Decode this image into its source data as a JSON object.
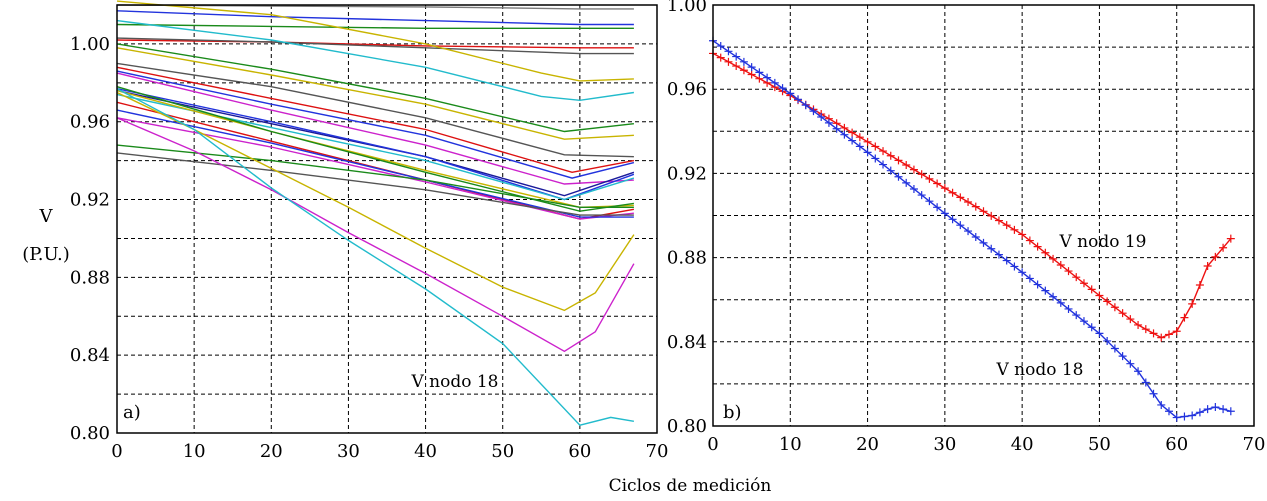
{
  "figure": {
    "xlabel": "Ciclos de medición",
    "ylabel_line1": "V",
    "ylabel_line2": "(P.U.)"
  },
  "chart_data": [
    {
      "type": "line",
      "panel_label": "a)",
      "annotation": "V nodo 18",
      "xlim": [
        0,
        70
      ],
      "ylim": [
        0.8,
        1.02
      ],
      "xticks": [
        0,
        10,
        20,
        30,
        40,
        50,
        60,
        70
      ],
      "xtick_labels": [
        "0",
        "10",
        "20",
        "30",
        "40",
        "50",
        "60",
        "70"
      ],
      "yticks": [
        0.8,
        0.84,
        0.88,
        0.92,
        0.96,
        1.0
      ],
      "ytick_labels": [
        "0.80",
        "0.84",
        "0.88",
        "0.92",
        "0.96",
        "1.00"
      ],
      "grid": true,
      "series": [
        {
          "color": "#7a7a7a",
          "x": [
            0,
            20,
            40,
            60,
            67
          ],
          "y": [
            1.02,
            1.0195,
            1.019,
            1.018,
            1.018
          ]
        },
        {
          "color": "#2233dd",
          "x": [
            0,
            20,
            40,
            60,
            67
          ],
          "y": [
            1.017,
            1.014,
            1.012,
            1.01,
            1.01
          ]
        },
        {
          "color": "#1a8a1a",
          "x": [
            0,
            20,
            40,
            60,
            67
          ],
          "y": [
            1.01,
            1.009,
            1.008,
            1.008,
            1.008
          ]
        },
        {
          "color": "#dd1111",
          "x": [
            0,
            20,
            40,
            60,
            67
          ],
          "y": [
            1.002,
            1.001,
            0.999,
            0.998,
            0.998
          ]
        },
        {
          "color": "#555555",
          "x": [
            0,
            20,
            40,
            60,
            67
          ],
          "y": [
            1.003,
            1.001,
            0.998,
            0.995,
            0.995
          ]
        },
        {
          "color": "#c8b400",
          "x": [
            0,
            20,
            40,
            55,
            60,
            67
          ],
          "y": [
            1.022,
            1.015,
            1.0,
            0.985,
            0.981,
            0.982
          ]
        },
        {
          "color": "#22bbcc",
          "x": [
            0,
            20,
            40,
            55,
            60,
            67
          ],
          "y": [
            1.012,
            1.002,
            0.988,
            0.973,
            0.971,
            0.975
          ]
        },
        {
          "color": "#1a8a1a",
          "x": [
            0,
            20,
            40,
            58,
            67
          ],
          "y": [
            1.0,
            0.987,
            0.972,
            0.955,
            0.959
          ]
        },
        {
          "color": "#c8b400",
          "x": [
            0,
            20,
            40,
            58,
            67
          ],
          "y": [
            0.998,
            0.984,
            0.969,
            0.951,
            0.953
          ]
        },
        {
          "color": "#555555",
          "x": [
            0,
            20,
            40,
            58,
            67
          ],
          "y": [
            0.99,
            0.978,
            0.962,
            0.943,
            0.942
          ]
        },
        {
          "color": "#dd1111",
          "x": [
            0,
            20,
            40,
            59,
            67
          ],
          "y": [
            0.988,
            0.972,
            0.956,
            0.934,
            0.94
          ]
        },
        {
          "color": "#2233dd",
          "x": [
            0,
            20,
            40,
            59,
            67
          ],
          "y": [
            0.986,
            0.969,
            0.953,
            0.931,
            0.939
          ]
        },
        {
          "color": "#cc22cc",
          "x": [
            0,
            20,
            40,
            58,
            67
          ],
          "y": [
            0.985,
            0.966,
            0.948,
            0.928,
            0.93
          ]
        },
        {
          "color": "#1a1a9a",
          "x": [
            0,
            20,
            40,
            58,
            67
          ],
          "y": [
            0.976,
            0.959,
            0.942,
            0.922,
            0.934
          ]
        },
        {
          "color": "#2233dd",
          "x": [
            0,
            20,
            40,
            58,
            67
          ],
          "y": [
            0.977,
            0.96,
            0.942,
            0.92,
            0.933
          ]
        },
        {
          "color": "#22bbcc",
          "x": [
            0,
            20,
            40,
            58,
            67
          ],
          "y": [
            0.974,
            0.957,
            0.94,
            0.92,
            0.931
          ]
        },
        {
          "color": "#c8b400",
          "x": [
            0,
            20,
            40,
            60,
            67
          ],
          "y": [
            0.976,
            0.955,
            0.935,
            0.916,
            0.917
          ]
        },
        {
          "color": "#1a8a1a",
          "x": [
            0,
            20,
            40,
            60,
            67
          ],
          "y": [
            0.978,
            0.955,
            0.934,
            0.914,
            0.918
          ]
        },
        {
          "color": "#dd1111",
          "x": [
            0,
            20,
            40,
            60,
            67
          ],
          "y": [
            0.97,
            0.95,
            0.93,
            0.91,
            0.915
          ]
        },
        {
          "color": "#cc22cc",
          "x": [
            0,
            20,
            40,
            60,
            67
          ],
          "y": [
            0.962,
            0.947,
            0.929,
            0.91,
            0.913
          ]
        },
        {
          "color": "#2233dd",
          "x": [
            0,
            20,
            40,
            60,
            67
          ],
          "y": [
            0.966,
            0.949,
            0.93,
            0.911,
            0.911
          ]
        },
        {
          "color": "#1a8a1a",
          "x": [
            0,
            20,
            40,
            60,
            67
          ],
          "y": [
            0.948,
            0.94,
            0.93,
            0.916,
            0.916
          ]
        },
        {
          "color": "#555555",
          "x": [
            0,
            20,
            40,
            60,
            67
          ],
          "y": [
            0.944,
            0.935,
            0.925,
            0.912,
            0.912
          ]
        },
        {
          "color": "#c8b400",
          "x": [
            0,
            10,
            20,
            30,
            40,
            50,
            58,
            62,
            67
          ],
          "y": [
            0.975,
            0.956,
            0.936,
            0.916,
            0.895,
            0.875,
            0.863,
            0.872,
            0.902
          ]
        },
        {
          "color": "#cc22cc",
          "x": [
            0,
            10,
            20,
            30,
            40,
            50,
            58,
            62,
            67
          ],
          "y": [
            0.962,
            0.945,
            0.925,
            0.903,
            0.882,
            0.86,
            0.842,
            0.852,
            0.887
          ]
        },
        {
          "color": "#22bbcc",
          "x": [
            0,
            10,
            20,
            30,
            40,
            50,
            60,
            64,
            67
          ],
          "y": [
            0.977,
            0.956,
            0.926,
            0.899,
            0.874,
            0.846,
            0.804,
            0.808,
            0.806
          ]
        }
      ]
    },
    {
      "type": "line",
      "panel_label": "b)",
      "xlim": [
        0,
        70
      ],
      "ylim": [
        0.8,
        1.0
      ],
      "xticks": [
        0,
        10,
        20,
        30,
        40,
        50,
        60,
        70
      ],
      "xtick_labels": [
        "0",
        "10",
        "20",
        "30",
        "40",
        "50",
        "60",
        "70"
      ],
      "yticks": [
        0.8,
        0.84,
        0.88,
        0.92,
        0.96,
        1.0
      ],
      "ytick_labels": [
        "0.80",
        "0.84",
        "0.88",
        "0.92",
        "0.96",
        "1.00"
      ],
      "grid": true,
      "marker": "+",
      "series": [
        {
          "name": "V nodo 19",
          "color": "#ee1111",
          "x": [
            0,
            10,
            20,
            30,
            40,
            50,
            55,
            58,
            60,
            62,
            64,
            67
          ],
          "y": [
            0.977,
            0.957,
            0.935,
            0.913,
            0.891,
            0.862,
            0.848,
            0.842,
            0.845,
            0.858,
            0.876,
            0.889
          ]
        },
        {
          "name": "V nodo 18",
          "color": "#2233dd",
          "x": [
            0,
            10,
            20,
            30,
            40,
            50,
            55,
            58,
            60,
            62,
            64,
            65,
            67
          ],
          "y": [
            0.983,
            0.958,
            0.93,
            0.901,
            0.873,
            0.844,
            0.826,
            0.81,
            0.804,
            0.805,
            0.808,
            0.809,
            0.807
          ]
        }
      ]
    }
  ]
}
